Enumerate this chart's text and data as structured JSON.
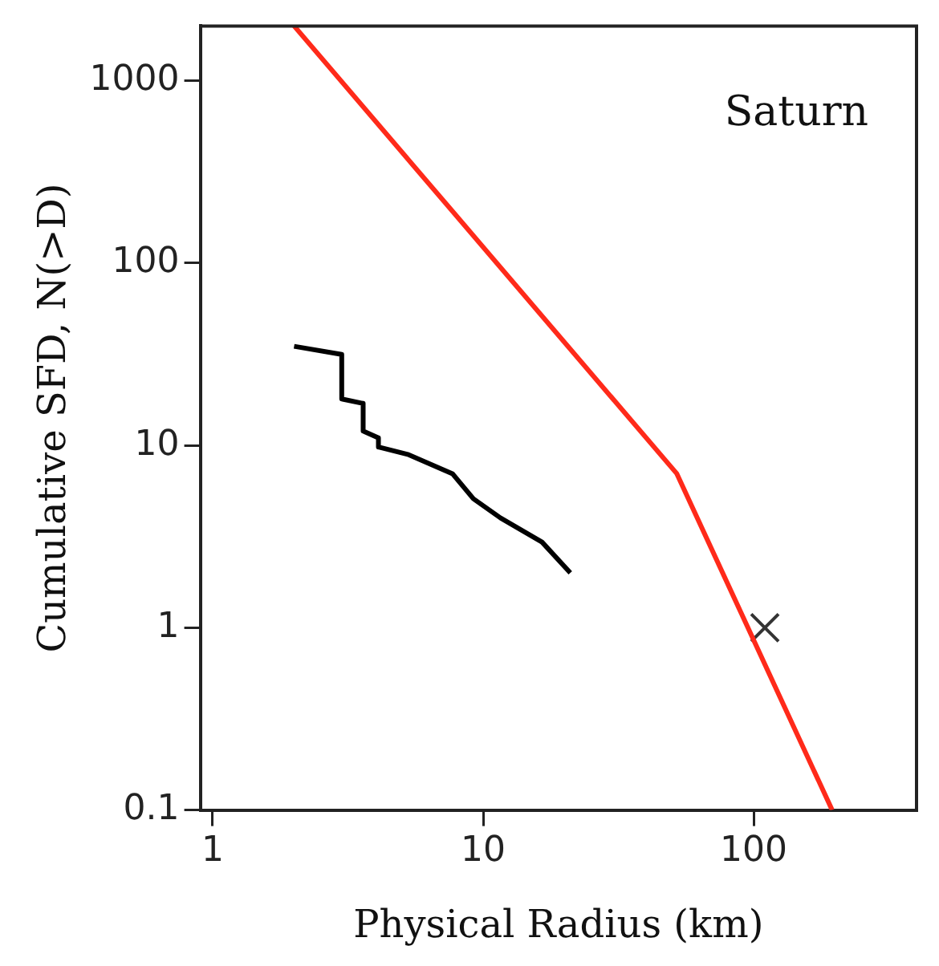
{
  "chart_data": {
    "type": "line",
    "xlabel": "Physical Radius (km)",
    "ylabel": "Cumulative SFD, N(>D)",
    "log": "xy",
    "grid": false,
    "legend": false,
    "xlim": [
      0.9,
      400
    ],
    "xticks": [
      1,
      10,
      100
    ],
    "ylim": [
      0.1,
      2000
    ],
    "yticks": [
      0.1,
      1,
      10,
      100,
      1000
    ],
    "annotations": [
      "Saturn"
    ],
    "series": [
      {
        "color": "#ff2a1a",
        "marker": "none",
        "line_style": "solid",
        "x": [
          2,
          52,
          195
        ],
        "values": [
          2000,
          7,
          0.1
        ]
      },
      {
        "color": "#000000",
        "marker": "none",
        "line_style": "solid",
        "x": [
          2,
          3.0,
          3.0,
          3.6,
          3.6,
          4.1,
          4.1,
          5.3,
          7.7,
          9.2,
          11.6,
          16.5,
          21
        ],
        "values": [
          35,
          31.6,
          18,
          17,
          12,
          11,
          9.8,
          8.9,
          7,
          5.1,
          4,
          2.95,
          2.0
        ]
      },
      {
        "type": "scatter",
        "color": "#333333",
        "marker": "cross",
        "x": [
          110
        ],
        "values": [
          1
        ]
      }
    ]
  }
}
